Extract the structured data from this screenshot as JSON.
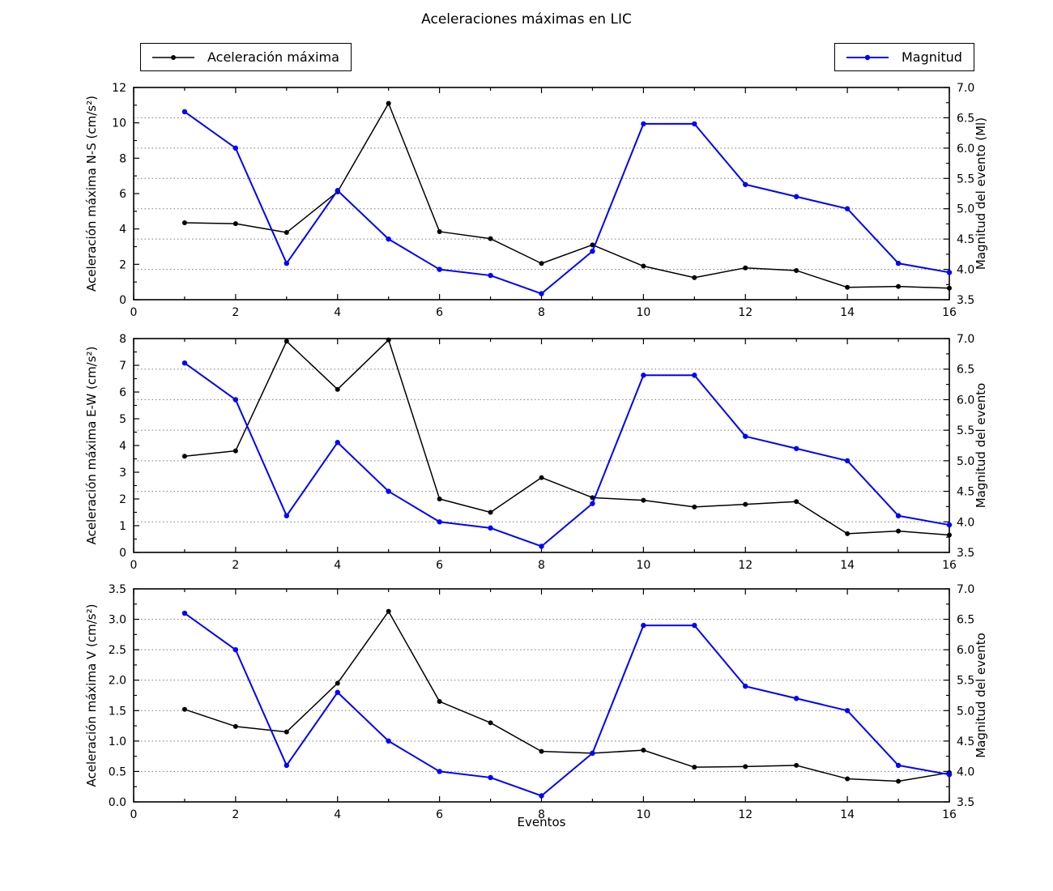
{
  "title": "Aceleraciones máximas en LIC",
  "xlabel": "Eventos",
  "legends": {
    "acceleration": {
      "label": "Aceleración máxima",
      "color": "#000000"
    },
    "magnitude": {
      "label": "Magnitud",
      "color": "#0000ff"
    }
  },
  "chart_data": [
    {
      "type": "line",
      "x": [
        1,
        2,
        3,
        4,
        5,
        6,
        7,
        8,
        9,
        10,
        11,
        12,
        13,
        14,
        15,
        16
      ],
      "xlim": [
        0,
        16
      ],
      "xticks": [
        0,
        2,
        4,
        6,
        8,
        10,
        12,
        14,
        16
      ],
      "xtick_labels": [
        "0",
        "2",
        "4",
        "6",
        "8",
        "10",
        "12",
        "14",
        "16"
      ],
      "ylabel_left": "Aceleración máxima N-S (cm/s²)",
      "ylabel_right": "Magnitud del evento (Ml)",
      "ylim_left": [
        0,
        12
      ],
      "yticks_left": [
        0,
        2,
        4,
        6,
        8,
        10,
        12
      ],
      "ytick_labels_left": [
        "0",
        "2",
        "4",
        "6",
        "8",
        "10",
        "12"
      ],
      "ylim_right": [
        3.5,
        7.0
      ],
      "yticks_right": [
        3.5,
        4.0,
        4.5,
        5.0,
        5.5,
        6.0,
        6.5,
        7.0
      ],
      "ytick_labels_right": [
        "3.5",
        "4.0",
        "4.5",
        "5.0",
        "5.5",
        "6.0",
        "6.5",
        "7.0"
      ],
      "grid_right_values": [
        4.0,
        4.5,
        5.0,
        5.5,
        6.0,
        6.5
      ],
      "minor_step_x": 1,
      "minor_step_left": 1,
      "minor_step_right": 0.25,
      "series": [
        {
          "name": "Aceleración máxima",
          "axis": "left",
          "color": "#000000",
          "values": [
            4.35,
            4.3,
            3.8,
            6.1,
            11.1,
            3.85,
            3.45,
            2.05,
            3.1,
            1.9,
            1.25,
            1.8,
            1.65,
            0.7,
            0.75,
            0.65
          ]
        },
        {
          "name": "Magnitud",
          "axis": "right",
          "color": "#0000ff",
          "values": [
            6.6,
            6.0,
            4.1,
            5.3,
            4.5,
            4.0,
            3.9,
            3.6,
            4.3,
            6.4,
            6.4,
            5.4,
            5.2,
            5.0,
            4.1,
            3.95
          ]
        }
      ]
    },
    {
      "type": "line",
      "x": [
        1,
        2,
        3,
        4,
        5,
        6,
        7,
        8,
        9,
        10,
        11,
        12,
        13,
        14,
        15,
        16
      ],
      "xlim": [
        0,
        16
      ],
      "xticks": [
        0,
        2,
        4,
        6,
        8,
        10,
        12,
        14,
        16
      ],
      "xtick_labels": [
        "0",
        "2",
        "4",
        "6",
        "8",
        "10",
        "12",
        "14",
        "16"
      ],
      "ylabel_left": "Aceleración máxima E-W (cm/s²)",
      "ylabel_right": "Magnitud del evento",
      "ylim_left": [
        0,
        8
      ],
      "yticks_left": [
        0,
        1,
        2,
        3,
        4,
        5,
        6,
        7,
        8
      ],
      "ytick_labels_left": [
        "0",
        "1",
        "2",
        "3",
        "4",
        "5",
        "6",
        "7",
        "8"
      ],
      "ylim_right": [
        3.5,
        7.0
      ],
      "yticks_right": [
        3.5,
        4.0,
        4.5,
        5.0,
        5.5,
        6.0,
        6.5,
        7.0
      ],
      "ytick_labels_right": [
        "3.5",
        "4.0",
        "4.5",
        "5.0",
        "5.5",
        "6.0",
        "6.5",
        "7.0"
      ],
      "grid_right_values": [
        4.0,
        4.5,
        5.0,
        5.5,
        6.0,
        6.5
      ],
      "minor_step_x": 1,
      "minor_step_left": 0.5,
      "minor_step_right": 0.25,
      "series": [
        {
          "name": "Aceleración máxima",
          "axis": "left",
          "color": "#000000",
          "values": [
            3.6,
            3.8,
            7.9,
            6.1,
            7.95,
            2.0,
            1.5,
            2.8,
            2.05,
            1.95,
            1.7,
            1.8,
            1.9,
            0.7,
            0.8,
            0.65
          ]
        },
        {
          "name": "Magnitud",
          "axis": "right",
          "color": "#0000ff",
          "values": [
            6.6,
            6.0,
            4.1,
            5.3,
            4.5,
            4.0,
            3.9,
            3.6,
            4.3,
            6.4,
            6.4,
            5.4,
            5.2,
            5.0,
            4.1,
            3.95
          ]
        }
      ]
    },
    {
      "type": "line",
      "x": [
        1,
        2,
        3,
        4,
        5,
        6,
        7,
        8,
        9,
        10,
        11,
        12,
        13,
        14,
        15,
        16
      ],
      "xlim": [
        0,
        16
      ],
      "xticks": [
        0,
        2,
        4,
        6,
        8,
        10,
        12,
        14,
        16
      ],
      "xtick_labels": [
        "0",
        "2",
        "4",
        "6",
        "8",
        "10",
        "12",
        "14",
        "16"
      ],
      "ylabel_left": "Aceleración máxima V (cm/s²)",
      "ylabel_right": "Magnitud del evento",
      "ylim_left": [
        0,
        3.5
      ],
      "yticks_left": [
        0,
        0.5,
        1.0,
        1.5,
        2.0,
        2.5,
        3.0,
        3.5
      ],
      "ytick_labels_left": [
        "0.0",
        "0.5",
        "1.0",
        "1.5",
        "2.0",
        "2.5",
        "3.0",
        "3.5"
      ],
      "ylim_right": [
        3.5,
        7.0
      ],
      "yticks_right": [
        3.5,
        4.0,
        4.5,
        5.0,
        5.5,
        6.0,
        6.5,
        7.0
      ],
      "ytick_labels_right": [
        "3.5",
        "4.0",
        "4.5",
        "5.0",
        "5.5",
        "6.0",
        "6.5",
        "7.0"
      ],
      "grid_right_values": [
        4.0,
        4.5,
        5.0,
        5.5,
        6.0,
        6.5
      ],
      "minor_step_x": 1,
      "minor_step_left": 0.25,
      "minor_step_right": 0.25,
      "series": [
        {
          "name": "Aceleración máxima",
          "axis": "left",
          "color": "#000000",
          "values": [
            1.52,
            1.24,
            1.15,
            1.95,
            3.13,
            1.65,
            1.3,
            0.83,
            0.8,
            0.85,
            0.57,
            0.58,
            0.6,
            0.38,
            0.34,
            0.48
          ]
        },
        {
          "name": "Magnitud",
          "axis": "right",
          "color": "#0000ff",
          "values": [
            6.6,
            6.0,
            4.1,
            5.3,
            4.5,
            4.0,
            3.9,
            3.6,
            4.3,
            6.4,
            6.4,
            5.4,
            5.2,
            5.0,
            4.1,
            3.95
          ]
        }
      ]
    }
  ]
}
